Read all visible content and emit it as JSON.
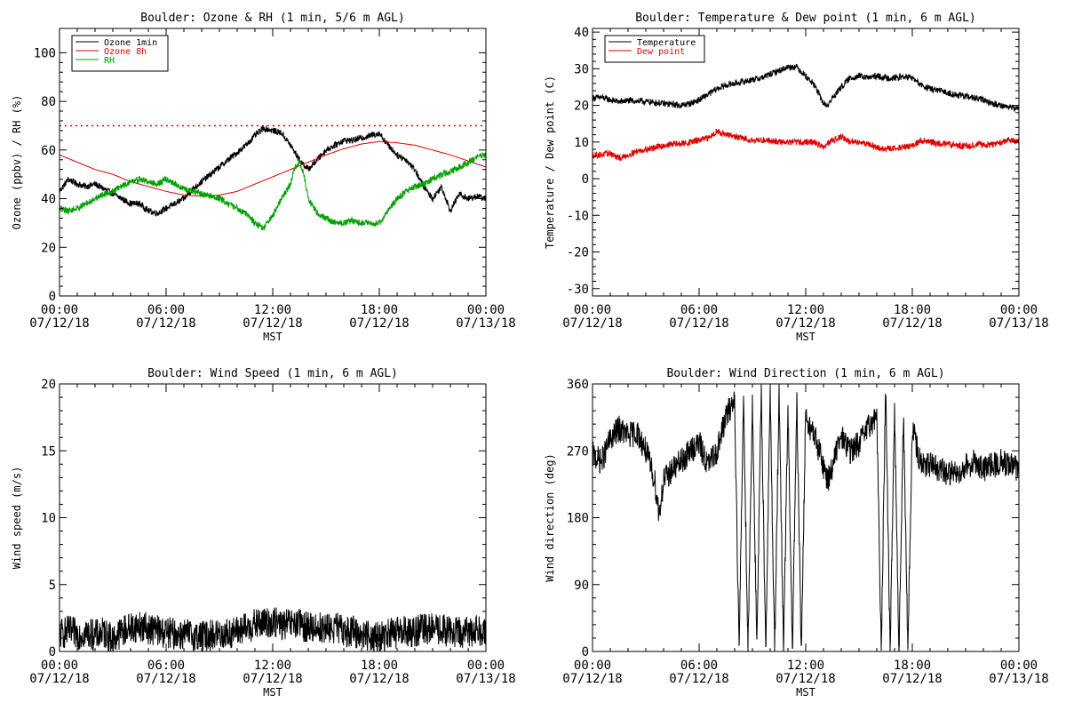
{
  "figure": {
    "xtick_times": [
      "00:00",
      "06:00",
      "12:00",
      "18:00",
      "00:00"
    ],
    "xtick_dates": [
      "07/12/18",
      "07/12/18",
      "07/12/18",
      "07/12/18",
      "07/13/18"
    ],
    "xlabel": "MST"
  },
  "chart_data": [
    {
      "type": "line",
      "title": "Boulder: Ozone & RH (1 min, 5/6 m AGL)",
      "xlabel": "MST",
      "ylabel": "Ozone (ppbv) / RH (%)",
      "xlim": [
        0,
        24
      ],
      "ylim": [
        0,
        110
      ],
      "yticks": [
        0,
        20,
        40,
        60,
        80,
        100
      ],
      "ytick_labels": [
        "0",
        "20",
        "40",
        "60",
        "80",
        "100"
      ],
      "legend_position": "top-left",
      "reference_lines": [
        {
          "y": 70,
          "style": "dotted",
          "color": "#e00000"
        }
      ],
      "series": [
        {
          "name": "Ozone 1min",
          "color": "#000000",
          "x": [
            0,
            0.5,
            1,
            1.5,
            2,
            2.5,
            3,
            3.5,
            4,
            4.5,
            5,
            5.5,
            6,
            6.5,
            7,
            7.5,
            8,
            8.5,
            9,
            9.5,
            10,
            10.5,
            11,
            11.5,
            12,
            12.5,
            13,
            13.5,
            14,
            14.5,
            15,
            15.5,
            16,
            16.5,
            17,
            17.5,
            18,
            18.5,
            19,
            19.5,
            20,
            20.5,
            21,
            21.5,
            22,
            22.5,
            23,
            23.5,
            24
          ],
          "values": [
            43,
            48,
            46,
            45,
            46,
            44,
            42,
            40,
            38,
            38,
            35,
            34,
            36,
            38,
            40,
            44,
            47,
            50,
            53,
            56,
            59,
            62,
            66,
            69,
            68,
            67,
            62,
            56,
            52,
            56,
            60,
            62,
            64,
            64,
            65,
            66,
            67,
            62,
            58,
            56,
            52,
            45,
            40,
            45,
            35,
            42,
            40,
            41,
            40
          ]
        },
        {
          "name": "Ozone 8h",
          "color": "#e00000",
          "x": [
            0,
            1,
            2,
            3,
            4,
            5,
            6,
            7,
            8,
            9,
            10,
            11,
            12,
            13,
            14,
            15,
            16,
            17,
            18,
            19,
            20,
            21,
            22,
            23,
            24
          ],
          "values": [
            58,
            55,
            52,
            50,
            47,
            45,
            43,
            41.5,
            41,
            41.5,
            43,
            46,
            49,
            52,
            55,
            58,
            60.5,
            62.5,
            63.5,
            63,
            62,
            60,
            58,
            55.5,
            53
          ]
        },
        {
          "name": "RH",
          "color": "#00a000",
          "x": [
            0,
            0.5,
            1,
            1.5,
            2,
            2.5,
            3,
            3.5,
            4,
            4.5,
            5,
            5.5,
            6,
            6.5,
            7,
            7.5,
            8,
            8.5,
            9,
            9.5,
            10,
            10.5,
            11,
            11.5,
            12,
            12.5,
            13,
            13.25,
            13.5,
            13.75,
            14,
            14.5,
            15,
            15.5,
            16,
            16.5,
            17,
            17.5,
            18,
            18.5,
            19,
            19.5,
            20,
            20.5,
            21,
            21.5,
            22,
            22.5,
            23,
            23.5,
            24
          ],
          "values": [
            36,
            35,
            36,
            38,
            40,
            42,
            43,
            45,
            47,
            48,
            47,
            46,
            48,
            46,
            44,
            43,
            42,
            41,
            40,
            38,
            36,
            34,
            30,
            28,
            33,
            40,
            46,
            53,
            55,
            50,
            40,
            34,
            32,
            30,
            30,
            31,
            30,
            30,
            30,
            35,
            40,
            43,
            45,
            46,
            48,
            50,
            51,
            53,
            55,
            57,
            58
          ]
        }
      ]
    },
    {
      "type": "line",
      "title": "Boulder: Temperature & Dew point (1 min, 6 m AGL)",
      "xlabel": "MST",
      "ylabel": "Temperature / Dew point (C)",
      "xlim": [
        0,
        24
      ],
      "ylim": [
        -32,
        41
      ],
      "yticks": [
        -30,
        -20,
        -10,
        0,
        10,
        20,
        30,
        40
      ],
      "ytick_labels": [
        "-30",
        "-20",
        "-10",
        "0",
        "10",
        "20",
        "30",
        "40"
      ],
      "legend_position": "top-left",
      "series": [
        {
          "name": "Temperature",
          "color": "#000000",
          "x": [
            0,
            0.5,
            1,
            1.5,
            2,
            2.5,
            3,
            3.5,
            4,
            4.5,
            5,
            5.5,
            6,
            6.5,
            7,
            7.5,
            8,
            8.5,
            9,
            9.5,
            10,
            10.5,
            11,
            11.5,
            12,
            12.5,
            13,
            13.25,
            13.5,
            14,
            14.5,
            15,
            15.5,
            16,
            16.5,
            17,
            17.5,
            18,
            18.5,
            19,
            19.5,
            20,
            20.5,
            21,
            21.5,
            22,
            22.5,
            23,
            23.5,
            24
          ],
          "values": [
            22,
            22.2,
            21.5,
            21,
            21.3,
            21.2,
            21,
            20.8,
            20.5,
            20.3,
            20,
            20.5,
            21.5,
            23,
            24.5,
            25.5,
            26,
            26.5,
            27,
            27.5,
            28.5,
            29.5,
            30.5,
            30.5,
            28,
            25.5,
            20.5,
            20,
            22,
            25,
            27.5,
            28,
            27.5,
            28,
            27.5,
            27.5,
            27.8,
            27.5,
            25.5,
            24.5,
            24,
            23.5,
            22.8,
            22.5,
            22,
            21.5,
            20.5,
            20,
            19.5,
            19
          ]
        },
        {
          "name": "Dew point",
          "color": "#e00000",
          "x": [
            0,
            0.5,
            1,
            1.5,
            2,
            2.5,
            3,
            3.5,
            4,
            4.5,
            5,
            5.5,
            6,
            6.5,
            7,
            7.5,
            8,
            8.5,
            9,
            9.5,
            10,
            10.5,
            11,
            11.5,
            12,
            12.5,
            13,
            13.5,
            14,
            14.5,
            15,
            15.5,
            16,
            16.5,
            17,
            17.5,
            18,
            18.5,
            19,
            19.5,
            20,
            20.5,
            21,
            21.5,
            22,
            22.5,
            23,
            23.5,
            24
          ],
          "values": [
            6.5,
            6.5,
            7,
            5.5,
            6.5,
            7.5,
            8,
            8.5,
            9,
            9.5,
            9.5,
            10,
            10.5,
            11,
            13,
            12,
            11.5,
            11,
            10.5,
            10.5,
            10.5,
            10,
            10,
            10,
            10,
            10,
            8.5,
            10.5,
            11.5,
            10,
            10,
            9.5,
            8.5,
            8,
            8.5,
            8.5,
            9,
            10.5,
            10,
            9.5,
            9.5,
            9,
            9,
            9.2,
            9.5,
            9.2,
            10,
            10.5,
            10
          ]
        }
      ]
    },
    {
      "type": "line",
      "title": "Boulder: Wind Speed (1 min, 6 m AGL)",
      "xlabel": "MST",
      "ylabel": "Wind speed (m/s)",
      "xlim": [
        0,
        24
      ],
      "ylim": [
        0,
        20
      ],
      "yticks": [
        0,
        5,
        10,
        15,
        20
      ],
      "ytick_labels": [
        "0",
        "5",
        "10",
        "15",
        "20"
      ],
      "series": [
        {
          "color": "#000000",
          "x": [
            0,
            0.5,
            1,
            1.5,
            2,
            2.5,
            3,
            3.5,
            4,
            4.5,
            5,
            5.5,
            6,
            6.5,
            7,
            7.5,
            8,
            8.5,
            9,
            9.5,
            10,
            10.5,
            11,
            11.5,
            12,
            12.5,
            13,
            13.5,
            14,
            14.5,
            15,
            15.5,
            16,
            16.5,
            17,
            17.5,
            18,
            18.5,
            19,
            19.5,
            20,
            20.5,
            21,
            21.5,
            22,
            22.5,
            23,
            23.5,
            24
          ],
          "values": [
            1.3,
            1.5,
            1.3,
            1.4,
            1.2,
            1.4,
            0.9,
            1.5,
            1.8,
            1.9,
            1.7,
            1.6,
            1.4,
            1.3,
            1.3,
            1.2,
            1.1,
            1.2,
            1.3,
            1.3,
            1.5,
            1.7,
            2.0,
            2.1,
            2.2,
            2.0,
            2.0,
            2.0,
            1.8,
            1.8,
            1.7,
            1.8,
            1.5,
            1.5,
            1.3,
            1.2,
            1.0,
            1.3,
            1.4,
            1.5,
            1.5,
            1.7,
            1.7,
            1.6,
            1.5,
            1.4,
            1.5,
            1.6,
            1.6
          ]
        }
      ]
    },
    {
      "type": "line",
      "title": "Boulder: Wind Direction (1 min, 6 m AGL)",
      "xlabel": "MST",
      "ylabel": "Wind direction (deg)",
      "xlim": [
        0,
        24
      ],
      "ylim": [
        0,
        360
      ],
      "yticks": [
        0,
        90,
        180,
        270,
        360
      ],
      "ytick_labels": [
        "0",
        "90",
        "180",
        "270",
        "360"
      ],
      "series": [
        {
          "color": "#000000",
          "x": [
            0,
            0.5,
            1,
            1.5,
            2,
            2.5,
            3,
            3.5,
            3.75,
            4,
            4.5,
            5,
            5.5,
            6,
            6.5,
            7,
            7.5,
            8,
            8.25,
            8.5,
            8.75,
            9,
            9.25,
            9.5,
            9.75,
            10,
            10.25,
            10.5,
            10.75,
            11,
            11.25,
            11.5,
            11.75,
            12,
            12.25,
            12.5,
            13,
            13.25,
            13.5,
            14,
            14.5,
            15,
            15.5,
            16,
            16.25,
            16.5,
            16.75,
            17,
            17.25,
            17.5,
            17.75,
            18,
            18.5,
            19,
            19.5,
            20,
            20.5,
            21,
            21.5,
            22,
            22.5,
            23,
            23.5,
            24
          ],
          "values": [
            265,
            255,
            285,
            300,
            290,
            295,
            270,
            230,
            185,
            230,
            245,
            255,
            270,
            280,
            250,
            270,
            315,
            340,
            0,
            345,
            0,
            340,
            0,
            355,
            0,
            350,
            0,
            345,
            0,
            330,
            0,
            335,
            0,
            320,
            300,
            290,
            250,
            230,
            250,
            290,
            270,
            280,
            300,
            320,
            0,
            360,
            0,
            330,
            0,
            320,
            0,
            300,
            250,
            250,
            245,
            240,
            240,
            250,
            255,
            245,
            250,
            255,
            250,
            245
          ]
        }
      ]
    }
  ]
}
